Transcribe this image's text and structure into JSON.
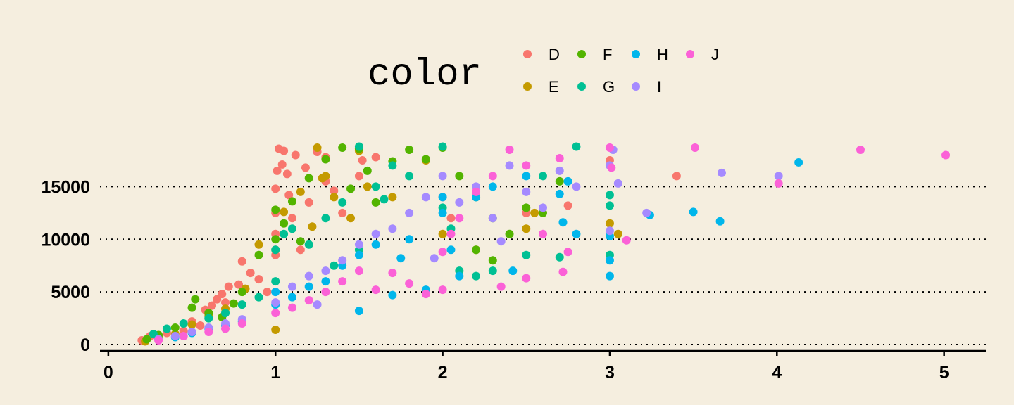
{
  "chart_data": {
    "type": "scatter",
    "title": "",
    "xlabel": "",
    "ylabel": "",
    "xlim": [
      -0.05,
      5.25
    ],
    "ylim": [
      -400,
      19500
    ],
    "x_ticks": [
      0,
      1,
      2,
      3,
      4,
      5
    ],
    "y_ticks": [
      0,
      5000,
      10000,
      15000
    ],
    "y_grid": "dotted",
    "x_grid": false,
    "legend": {
      "title": "color",
      "placement": "top-center",
      "entries": [
        {
          "label": "D",
          "color": "#F8766D"
        },
        {
          "label": "E",
          "color": "#C49A00"
        },
        {
          "label": "F",
          "color": "#53B400"
        },
        {
          "label": "G",
          "color": "#00C094"
        },
        {
          "label": "H",
          "color": "#00B6EB"
        },
        {
          "label": "I",
          "color": "#A58AFF"
        },
        {
          "label": "J",
          "color": "#FB61D7"
        }
      ]
    },
    "series": [
      {
        "name": "D",
        "color": "#F8766D",
        "points": [
          [
            0.2,
            400
          ],
          [
            0.3,
            600
          ],
          [
            0.45,
            1300
          ],
          [
            0.55,
            1800
          ],
          [
            0.6,
            2900
          ],
          [
            0.62,
            3700
          ],
          [
            0.65,
            4300
          ],
          [
            0.7,
            4000
          ],
          [
            0.72,
            5500
          ],
          [
            0.78,
            5700
          ],
          [
            0.8,
            7900
          ],
          [
            0.9,
            6200
          ],
          [
            0.95,
            5000
          ],
          [
            1.0,
            8500
          ],
          [
            1.0,
            10500
          ],
          [
            1.0,
            12500
          ],
          [
            1.0,
            14800
          ],
          [
            1.01,
            16500
          ],
          [
            1.02,
            18600
          ],
          [
            1.04,
            17100
          ],
          [
            1.05,
            18400
          ],
          [
            1.07,
            16200
          ],
          [
            1.1,
            12000
          ],
          [
            1.12,
            18000
          ],
          [
            1.15,
            9000
          ],
          [
            1.2,
            13500
          ],
          [
            1.25,
            18300
          ],
          [
            1.3,
            17800
          ],
          [
            1.3,
            15500
          ],
          [
            1.4,
            12500
          ],
          [
            1.5,
            16000
          ],
          [
            1.52,
            17500
          ],
          [
            2.0,
            14000
          ],
          [
            2.05,
            12000
          ],
          [
            2.5,
            12500
          ],
          [
            2.75,
            13200
          ],
          [
            3.0,
            17500
          ],
          [
            3.4,
            16000
          ],
          [
            0.25,
            800
          ],
          [
            0.35,
            1100
          ],
          [
            0.5,
            2200
          ],
          [
            0.58,
            3300
          ],
          [
            0.68,
            4800
          ],
          [
            0.85,
            6800
          ],
          [
            1.08,
            14200
          ],
          [
            1.18,
            16800
          ],
          [
            1.35,
            14600
          ],
          [
            1.6,
            17800
          ]
        ]
      },
      {
        "name": "E",
        "color": "#C49A00",
        "points": [
          [
            0.22,
            300
          ],
          [
            0.3,
            700
          ],
          [
            0.4,
            1000
          ],
          [
            0.5,
            1900
          ],
          [
            0.6,
            2700
          ],
          [
            0.7,
            3400
          ],
          [
            0.9,
            9500
          ],
          [
            1.0,
            1400
          ],
          [
            1.0,
            9000
          ],
          [
            1.05,
            12600
          ],
          [
            1.15,
            14500
          ],
          [
            1.25,
            18700
          ],
          [
            1.3,
            16000
          ],
          [
            1.35,
            14000
          ],
          [
            1.45,
            12000
          ],
          [
            1.5,
            18400
          ],
          [
            1.55,
            15000
          ],
          [
            1.7,
            14000
          ],
          [
            1.9,
            17500
          ],
          [
            2.0,
            10500
          ],
          [
            2.2,
            9000
          ],
          [
            2.5,
            11000
          ],
          [
            2.55,
            12500
          ],
          [
            3.0,
            11500
          ],
          [
            3.05,
            10500
          ],
          [
            1.28,
            15800
          ],
          [
            0.82,
            5300
          ],
          [
            1.22,
            11200
          ]
        ]
      },
      {
        "name": "F",
        "color": "#53B400",
        "points": [
          [
            0.23,
            500
          ],
          [
            0.3,
            900
          ],
          [
            0.4,
            1600
          ],
          [
            0.5,
            3500
          ],
          [
            0.52,
            4300
          ],
          [
            0.6,
            3000
          ],
          [
            0.75,
            3900
          ],
          [
            0.8,
            5000
          ],
          [
            0.9,
            8500
          ],
          [
            1.0,
            10000
          ],
          [
            1.0,
            12800
          ],
          [
            1.05,
            11500
          ],
          [
            1.1,
            13600
          ],
          [
            1.2,
            15800
          ],
          [
            1.3,
            17600
          ],
          [
            1.4,
            18700
          ],
          [
            1.5,
            18600
          ],
          [
            1.55,
            16500
          ],
          [
            1.6,
            13500
          ],
          [
            1.7,
            17400
          ],
          [
            1.8,
            18500
          ],
          [
            2.0,
            18700
          ],
          [
            2.1,
            16000
          ],
          [
            2.2,
            14000
          ],
          [
            2.3,
            12000
          ],
          [
            2.4,
            10500
          ],
          [
            2.5,
            13000
          ],
          [
            2.6,
            12500
          ],
          [
            2.7,
            15500
          ],
          [
            2.2,
            9000
          ],
          [
            2.3,
            8000
          ],
          [
            1.45,
            14800
          ],
          [
            1.15,
            9800
          ],
          [
            0.68,
            2600
          ],
          [
            1.9,
            17600
          ]
        ]
      },
      {
        "name": "G",
        "color": "#00C094",
        "points": [
          [
            0.27,
            1000
          ],
          [
            0.35,
            1500
          ],
          [
            0.45,
            2000
          ],
          [
            0.6,
            2500
          ],
          [
            0.7,
            3000
          ],
          [
            0.8,
            3800
          ],
          [
            0.9,
            4500
          ],
          [
            1.0,
            6000
          ],
          [
            1.0,
            9000
          ],
          [
            1.05,
            10500
          ],
          [
            1.1,
            11000
          ],
          [
            1.2,
            9500
          ],
          [
            1.3,
            12000
          ],
          [
            1.4,
            13500
          ],
          [
            1.5,
            9000
          ],
          [
            1.5,
            18800
          ],
          [
            1.6,
            15000
          ],
          [
            1.7,
            17000
          ],
          [
            1.8,
            16000
          ],
          [
            2.0,
            18800
          ],
          [
            2.0,
            13000
          ],
          [
            2.05,
            11000
          ],
          [
            2.1,
            7000
          ],
          [
            2.2,
            6500
          ],
          [
            2.3,
            7000
          ],
          [
            2.5,
            8500
          ],
          [
            2.6,
            16000
          ],
          [
            2.7,
            8300
          ],
          [
            2.8,
            18800
          ],
          [
            3.0,
            14200
          ],
          [
            3.0,
            13200
          ],
          [
            3.0,
            8500
          ],
          [
            1.35,
            7500
          ],
          [
            1.65,
            13800
          ]
        ]
      },
      {
        "name": "H",
        "color": "#00B6EB",
        "points": [
          [
            0.3,
            500
          ],
          [
            0.4,
            700
          ],
          [
            0.5,
            1100
          ],
          [
            0.6,
            1500
          ],
          [
            0.7,
            1800
          ],
          [
            0.8,
            2200
          ],
          [
            1.0,
            3800
          ],
          [
            1.0,
            5000
          ],
          [
            1.1,
            4500
          ],
          [
            1.2,
            5500
          ],
          [
            1.3,
            6000
          ],
          [
            1.4,
            7500
          ],
          [
            1.5,
            3200
          ],
          [
            1.5,
            8500
          ],
          [
            1.6,
            9500
          ],
          [
            1.7,
            4700
          ],
          [
            1.8,
            10000
          ],
          [
            1.9,
            5200
          ],
          [
            2.0,
            12500
          ],
          [
            2.0,
            14000
          ],
          [
            2.05,
            9000
          ],
          [
            2.1,
            6500
          ],
          [
            2.2,
            14000
          ],
          [
            2.3,
            15000
          ],
          [
            2.5,
            16000
          ],
          [
            2.7,
            14300
          ],
          [
            2.75,
            15500
          ],
          [
            2.72,
            11600
          ],
          [
            2.8,
            10500
          ],
          [
            3.0,
            6500
          ],
          [
            3.0,
            8000
          ],
          [
            3.0,
            10300
          ],
          [
            3.24,
            12300
          ],
          [
            3.5,
            12600
          ],
          [
            3.66,
            11700
          ],
          [
            4.13,
            17300
          ],
          [
            1.75,
            8200
          ],
          [
            2.42,
            7000
          ]
        ]
      },
      {
        "name": "I",
        "color": "#A58AFF",
        "points": [
          [
            0.3,
            500
          ],
          [
            0.4,
            800
          ],
          [
            0.5,
            1200
          ],
          [
            0.6,
            1600
          ],
          [
            0.7,
            2000
          ],
          [
            0.8,
            2400
          ],
          [
            1.0,
            4000
          ],
          [
            1.1,
            5500
          ],
          [
            1.2,
            6500
          ],
          [
            1.3,
            7000
          ],
          [
            1.4,
            8000
          ],
          [
            1.5,
            9500
          ],
          [
            1.6,
            10500
          ],
          [
            1.7,
            11000
          ],
          [
            1.8,
            12500
          ],
          [
            1.9,
            14000
          ],
          [
            2.0,
            16000
          ],
          [
            2.1,
            13500
          ],
          [
            2.2,
            15000
          ],
          [
            2.3,
            12000
          ],
          [
            2.4,
            17000
          ],
          [
            2.5,
            14500
          ],
          [
            2.6,
            13000
          ],
          [
            2.7,
            16500
          ],
          [
            2.8,
            15000
          ],
          [
            3.0,
            17000
          ],
          [
            3.0,
            10800
          ],
          [
            3.02,
            18500
          ],
          [
            3.05,
            15300
          ],
          [
            3.22,
            12500
          ],
          [
            3.67,
            16300
          ],
          [
            4.01,
            16000
          ],
          [
            1.25,
            3800
          ],
          [
            1.95,
            8200
          ],
          [
            2.35,
            9800
          ]
        ]
      },
      {
        "name": "J",
        "color": "#FB61D7",
        "points": [
          [
            0.3,
            400
          ],
          [
            0.45,
            800
          ],
          [
            0.6,
            1200
          ],
          [
            0.7,
            1500
          ],
          [
            0.8,
            2000
          ],
          [
            1.0,
            3000
          ],
          [
            1.1,
            3500
          ],
          [
            1.2,
            4200
          ],
          [
            1.3,
            5000
          ],
          [
            1.4,
            6000
          ],
          [
            1.5,
            7000
          ],
          [
            1.6,
            5200
          ],
          [
            1.8,
            5800
          ],
          [
            1.9,
            4800
          ],
          [
            2.0,
            5200
          ],
          [
            2.0,
            8800
          ],
          [
            2.05,
            10500
          ],
          [
            2.1,
            12000
          ],
          [
            2.2,
            14500
          ],
          [
            2.3,
            16000
          ],
          [
            2.4,
            18500
          ],
          [
            2.5,
            17000
          ],
          [
            2.5,
            6300
          ],
          [
            2.6,
            10500
          ],
          [
            2.7,
            17700
          ],
          [
            2.72,
            6900
          ],
          [
            2.75,
            8800
          ],
          [
            3.0,
            18700
          ],
          [
            3.01,
            16800
          ],
          [
            3.1,
            9900
          ],
          [
            3.51,
            18700
          ],
          [
            4.01,
            15300
          ],
          [
            4.5,
            18500
          ],
          [
            5.01,
            18000
          ],
          [
            2.35,
            5500
          ],
          [
            1.7,
            6800
          ]
        ]
      }
    ]
  }
}
